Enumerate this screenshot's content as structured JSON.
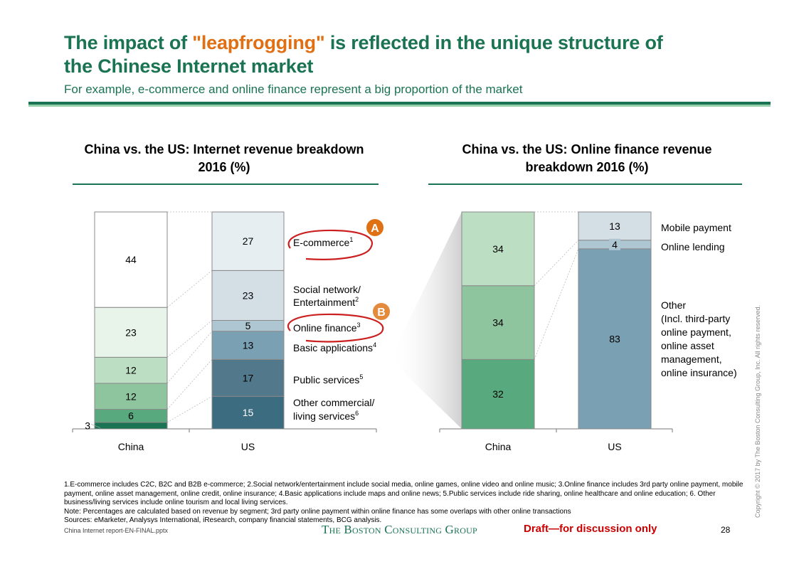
{
  "header": {
    "title_part1": "The impact of ",
    "title_highlight": "\"leapfrogging\"",
    "title_part2": " is reflected in the unique structure of",
    "title_line2": "the Chinese Internet market",
    "subtitle": "For example, e-commerce and online finance represent a big proportion of the market"
  },
  "colors": {
    "brand_green": "#1a7352",
    "highlight_orange": "#e06f14",
    "draft_red": "#cc0000",
    "marker_orange": "#e07a1a",
    "circle_red": "#cc1f1f"
  },
  "chart_data": [
    {
      "type": "bar",
      "stacked": true,
      "title": "China vs. the US: Internet revenue breakdown 2016 (%)",
      "categories": [
        "China",
        "US"
      ],
      "ylim": [
        0,
        100
      ],
      "grid": false,
      "legend_position": "right",
      "series": [
        {
          "name": "Other commercial/ living services",
          "footnote": "6",
          "values": [
            3,
            15
          ],
          "colors": [
            "#1a7352",
            "#3c6c80"
          ]
        },
        {
          "name": "Public services",
          "footnote": "5",
          "values": [
            6,
            17
          ],
          "colors": [
            "#58a97e",
            "#52788c"
          ]
        },
        {
          "name": "Basic applications",
          "footnote": "4",
          "values": [
            12,
            13
          ],
          "colors": [
            "#8ec49e",
            "#7aa0b3"
          ]
        },
        {
          "name": "Online finance",
          "footnote": "3",
          "values": [
            12,
            5
          ],
          "colors": [
            "#bcdec3",
            "#adc6d2"
          ],
          "marker": "B"
        },
        {
          "name": "Social network/ Entertainment",
          "footnote": "2",
          "values": [
            23,
            23
          ],
          "colors": [
            "#e8f3ea",
            "#d3dfe5"
          ]
        },
        {
          "name": "E-commerce",
          "footnote": "1",
          "values": [
            44,
            27
          ],
          "colors": [
            "#ffffff",
            "#e6eef1"
          ],
          "marker": "A"
        }
      ],
      "legend_lines": [
        [
          "E-commerce",
          "1"
        ],
        [
          "Social network/",
          ""
        ],
        [
          "Entertainment",
          "2"
        ],
        [
          "Online finance",
          "3"
        ],
        [
          "Basic applications",
          "4"
        ],
        [
          "Public services",
          "5"
        ],
        [
          "Other commercial/",
          ""
        ],
        [
          "living services",
          "6"
        ]
      ]
    },
    {
      "type": "bar",
      "stacked": true,
      "title": "China vs. the US: Online finance revenue breakdown 2016 (%)",
      "categories": [
        "China",
        "US"
      ],
      "ylim": [
        0,
        100
      ],
      "grid": false,
      "legend_position": "right",
      "series": [
        {
          "name": "Other (Incl. third-party online payment, online asset management, online insurance)",
          "values": [
            32,
            83
          ],
          "colors": [
            "#58a97e",
            "#7aa0b3"
          ]
        },
        {
          "name": "Online lending",
          "values": [
            34,
            4
          ],
          "colors": [
            "#8ec49e",
            "#adc6d2"
          ]
        },
        {
          "name": "Mobile payment",
          "values": [
            34,
            13
          ],
          "colors": [
            "#bcdec3",
            "#d3dfe5"
          ]
        }
      ],
      "legend_lines": [
        "Mobile payment",
        "Online lending",
        "Other",
        "(Incl. third-party",
        "online payment,",
        "online asset",
        "management,",
        "online insurance)"
      ]
    }
  ],
  "footnotes": {
    "line1": "1.E-commerce includes C2C, B2C and B2B e-commerce; 2.Social network/entertainment include social media, online games, online video and online music; 3.Online finance includes 3rd party online payment, mobile payment, online asset management, online credit, online insurance; 4.Basic applications include maps and online news; 5.Public services include ride sharing, online healthcare and online education; 6. Other business/living services include online tourism and local living services.",
    "note": "Note: Percentages are calculated based on revenue by segment; 3rd party online payment within online finance has some overlaps with other online transactions",
    "sources": "Sources: eMarketer, Analysys International, iResearch, company financial statements, BCG analysis."
  },
  "footer": {
    "file": "China Internet report-EN-FINAL.pptx",
    "logo": "The Boston Consulting Group",
    "draft": "Draft—for discussion only",
    "page": "28",
    "copyright": "Copyright © 2017 by The Boston Consulting Group, Inc. All rights reserved."
  }
}
